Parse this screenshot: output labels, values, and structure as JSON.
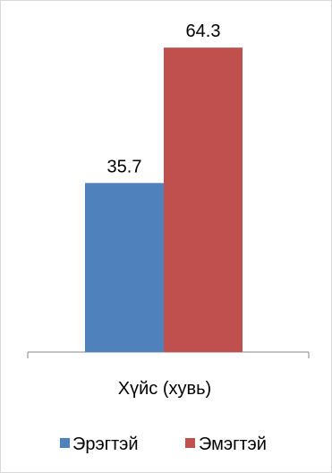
{
  "chart_data": {
    "type": "bar",
    "categories": [
      "Хүйс (хувь)"
    ],
    "series": [
      {
        "name": "Эрэгтэй",
        "values": [
          35.7
        ],
        "color": "#4f81bd"
      },
      {
        "name": "Эмэгтэй",
        "values": [
          64.3
        ],
        "color": "#c0504d"
      }
    ],
    "data_labels": [
      "35.7",
      "64.3"
    ],
    "ylim": [
      0,
      70
    ],
    "grid": false,
    "legend_position": "bottom"
  }
}
